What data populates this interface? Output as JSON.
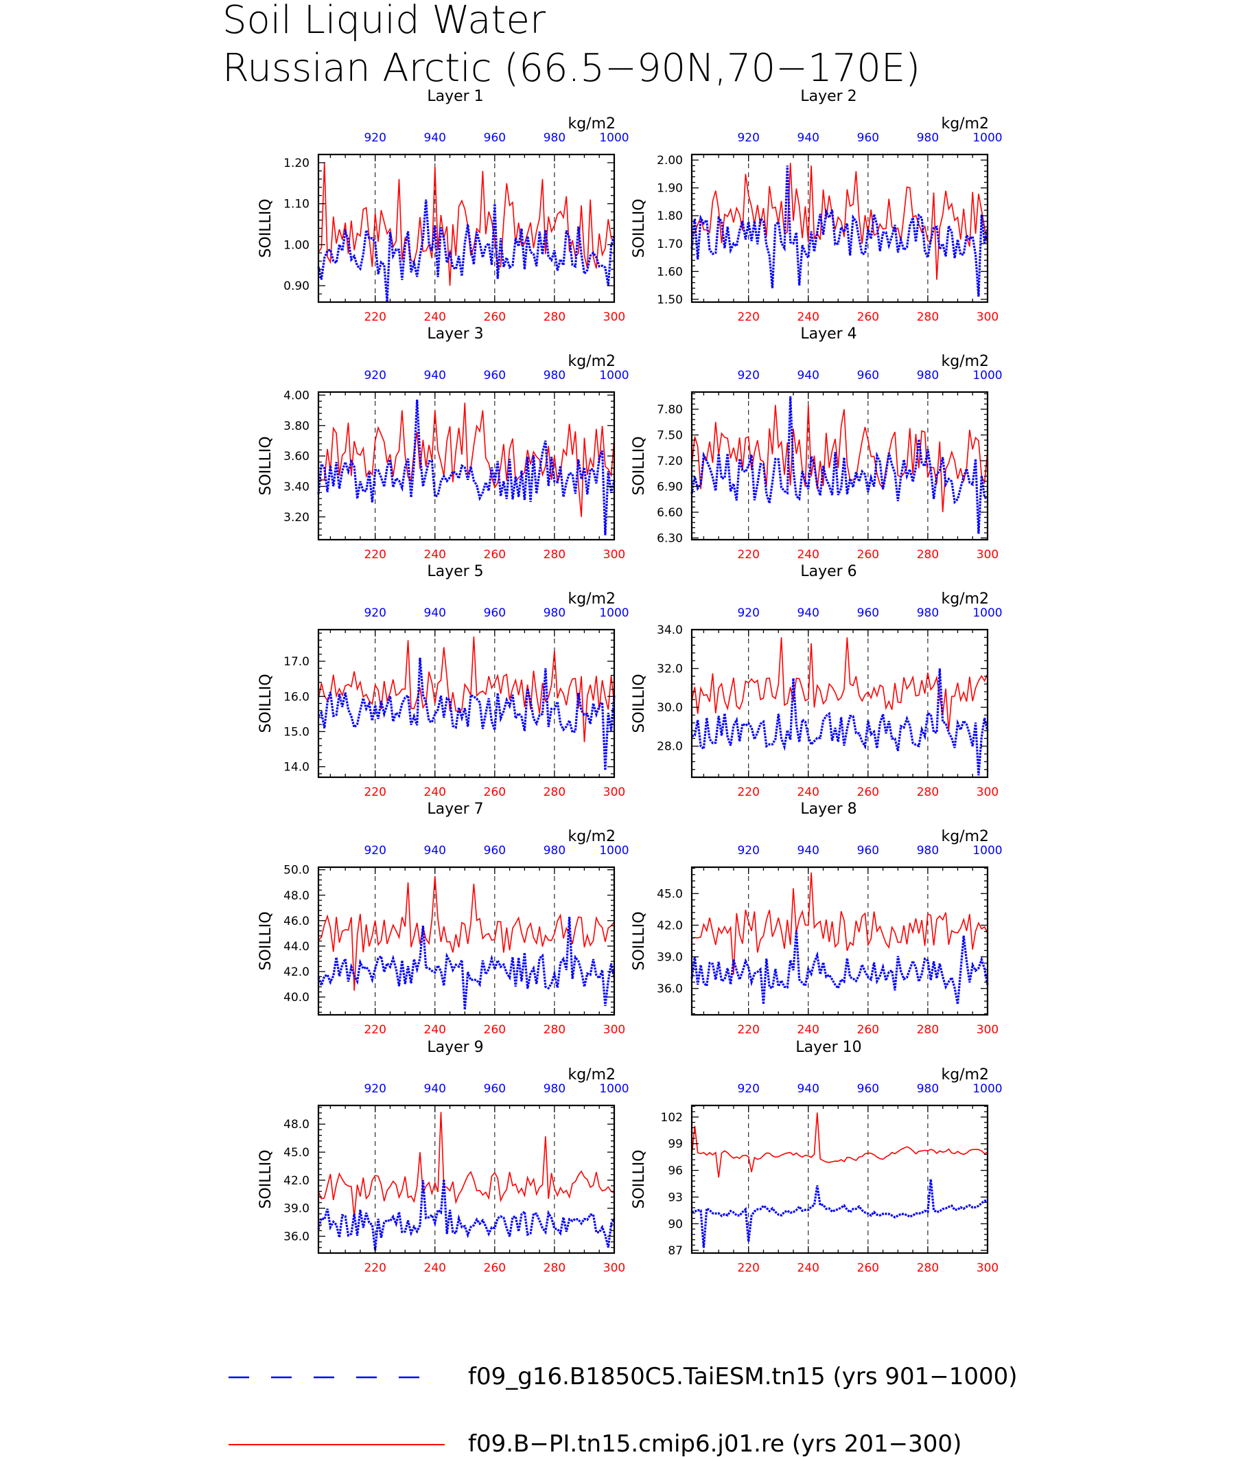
{
  "title": {
    "line1": "Soil Liquid Water",
    "line2": "Russian Arctic (66.5−90N,70−170E)"
  },
  "common": {
    "ylabel": "SOILLIQ",
    "units": "kg/m2",
    "bottom_axis": {
      "color": "#ff0000",
      "range": [
        201,
        300
      ],
      "ticks": [
        220,
        240,
        260,
        280,
        300
      ]
    },
    "top_axis": {
      "color": "#0000ff",
      "range": [
        901,
        1000
      ],
      "ticks": [
        920,
        940,
        960,
        980,
        1000
      ]
    },
    "dashed_gridlines_at_bottom_values": [
      220,
      240,
      260,
      280
    ]
  },
  "legend": {
    "blue_label": "f09_g16.B1850C5.TaiESM.tn15 (yrs 901−1000)",
    "red_label": "f09.B−PI.tn15.cmip6.j01.re (yrs 201−300)",
    "blue_color": "#0000ff",
    "red_color": "#ff0000"
  },
  "chart_data": [
    {
      "type": "line",
      "title": "Layer 1",
      "ylabel": "SOILLIQ",
      "ylim": [
        0.86,
        1.22
      ],
      "yticks": [
        "0.90",
        "1.00",
        "1.10",
        "1.20"
      ],
      "ytick_values": [
        0.9,
        1.0,
        1.1,
        1.2
      ],
      "series": [
        {
          "name": "f09.B−PI.tn15.cmip6.j01.re (yrs 201−300)",
          "mean": 1.03,
          "amp": 0.08,
          "peaks": [
            [
              203,
              1.2
            ],
            [
              228,
              1.16
            ],
            [
              240,
              1.19
            ],
            [
              245,
              0.9
            ],
            [
              256,
              1.18
            ],
            [
              264,
              1.15
            ],
            [
              276,
              1.16
            ]
          ],
          "seed": 11
        },
        {
          "name": "f09_g16.B1850C5.TaiESM.tn15 (yrs 901−1000)",
          "mean": 0.98,
          "amp": 0.06,
          "peaks": [
            [
              224,
              0.86
            ],
            [
              237,
              1.11
            ],
            [
              260,
              1.1
            ],
            [
              298,
              0.9
            ]
          ],
          "seed": 12
        }
      ]
    },
    {
      "type": "line",
      "title": "Layer 2",
      "ylabel": "SOILLIQ",
      "ylim": [
        1.49,
        2.02
      ],
      "yticks": [
        "1.50",
        "1.60",
        "1.70",
        "1.80",
        "1.90",
        "2.00"
      ],
      "ytick_values": [
        1.5,
        1.6,
        1.7,
        1.8,
        1.9,
        2.0
      ],
      "series": [
        {
          "name": "f09.B−PI.tn15.cmip6.j01.re (yrs 201−300)",
          "mean": 1.8,
          "amp": 0.1,
          "peaks": [
            [
              219,
              1.95
            ],
            [
              234,
              1.99
            ],
            [
              241,
              1.98
            ],
            [
              256,
              1.96
            ],
            [
              283,
              1.57
            ]
          ],
          "seed": 21
        },
        {
          "name": "f09_g16.B1850C5.TaiESM.tn15 (yrs 901−1000)",
          "mean": 1.73,
          "amp": 0.08,
          "peaks": [
            [
              233,
              1.98
            ],
            [
              228,
              1.54
            ],
            [
              237,
              1.55
            ],
            [
              297,
              1.51
            ]
          ],
          "seed": 22
        }
      ]
    },
    {
      "type": "line",
      "title": "Layer 3",
      "ylabel": "SOILLIQ",
      "ylim": [
        3.05,
        4.02
      ],
      "yticks": [
        "3.20",
        "3.40",
        "3.60",
        "3.80",
        "4.00"
      ],
      "ytick_values": [
        3.2,
        3.4,
        3.6,
        3.8,
        4.0
      ],
      "series": [
        {
          "name": "f09.B−PI.tn15.cmip6.j01.re (yrs 201−300)",
          "mean": 3.6,
          "amp": 0.2,
          "peaks": [
            [
              229,
              3.9
            ],
            [
              240,
              3.9
            ],
            [
              250,
              3.95
            ],
            [
              256,
              3.9
            ],
            [
              289,
              3.2
            ]
          ],
          "seed": 31
        },
        {
          "name": "f09_g16.B1850C5.TaiESM.tn15 (yrs 901−1000)",
          "mean": 3.45,
          "amp": 0.16,
          "peaks": [
            [
              234,
              3.97
            ],
            [
              297,
              3.08
            ],
            [
              277,
              3.7
            ]
          ],
          "seed": 32
        }
      ]
    },
    {
      "type": "line",
      "title": "Layer 4",
      "ylabel": "SOILLIQ",
      "ylim": [
        6.28,
        8.0
      ],
      "yticks": [
        "6.30",
        "6.60",
        "6.90",
        "7.20",
        "7.50",
        "7.80"
      ],
      "ytick_values": [
        6.3,
        6.6,
        6.9,
        7.2,
        7.5,
        7.8
      ],
      "series": [
        {
          "name": "f09.B−PI.tn15.cmip6.j01.re (yrs 201−300)",
          "mean": 7.25,
          "amp": 0.35,
          "peaks": [
            [
              229,
              7.85
            ],
            [
              240,
              7.85
            ],
            [
              252,
              7.8
            ],
            [
              285,
              6.6
            ]
          ],
          "seed": 41
        },
        {
          "name": "f09_g16.B1850C5.TaiESM.tn15 (yrs 901−1000)",
          "mean": 7.0,
          "amp": 0.28,
          "peaks": [
            [
              234,
              7.95
            ],
            [
              297,
              6.35
            ],
            [
              277,
              7.45
            ]
          ],
          "seed": 42
        }
      ]
    },
    {
      "type": "line",
      "title": "Layer 5",
      "ylabel": "SOILLIQ",
      "ylim": [
        13.7,
        17.9
      ],
      "yticks": [
        "14.0",
        "15.0",
        "16.0",
        "17.0"
      ],
      "ytick_values": [
        14.0,
        15.0,
        16.0,
        17.0
      ],
      "series": [
        {
          "name": "f09.B−PI.tn15.cmip6.j01.re (yrs 201−300)",
          "mean": 16.1,
          "amp": 0.55,
          "peaks": [
            [
              231,
              17.6
            ],
            [
              243,
              17.4
            ],
            [
              253,
              17.7
            ],
            [
              280,
              17.3
            ],
            [
              290,
              14.7
            ]
          ],
          "seed": 51
        },
        {
          "name": "f09_g16.B1850C5.TaiESM.tn15 (yrs 901−1000)",
          "mean": 15.6,
          "amp": 0.55,
          "peaks": [
            [
              235,
              17.1
            ],
            [
              297,
              13.9
            ],
            [
              277,
              16.8
            ]
          ],
          "seed": 52
        }
      ]
    },
    {
      "type": "line",
      "title": "Layer 6",
      "ylabel": "SOILLIQ",
      "ylim": [
        26.4,
        34.0
      ],
      "yticks": [
        "28.0",
        "30.0",
        "32.0",
        "34.0"
      ],
      "ytick_values": [
        28.0,
        30.0,
        32.0,
        34.0
      ],
      "series": [
        {
          "name": "f09.B−PI.tn15.cmip6.j01.re (yrs 201−300)",
          "mean": 30.7,
          "amp": 1.0,
          "peaks": [
            [
              231,
              33.6
            ],
            [
              241,
              33.3
            ],
            [
              253,
              33.6
            ],
            [
              287,
              28.8
            ]
          ],
          "seed": 61
        },
        {
          "name": "f09_g16.B1850C5.TaiESM.tn15 (yrs 901−1000)",
          "mean": 28.8,
          "amp": 0.9,
          "peaks": [
            [
              235,
              31.5
            ],
            [
              284,
              32.0
            ],
            [
              297,
              26.5
            ]
          ],
          "seed": 62
        }
      ]
    },
    {
      "type": "line",
      "title": "Layer 7",
      "ylabel": "SOILLIQ",
      "ylim": [
        38.6,
        50.2
      ],
      "yticks": [
        "40.0",
        "42.0",
        "44.0",
        "46.0",
        "48.0",
        "50.0"
      ],
      "ytick_values": [
        40.0,
        42.0,
        44.0,
        46.0,
        48.0,
        50.0
      ],
      "series": [
        {
          "name": "f09.B−PI.tn15.cmip6.j01.re (yrs 201−300)",
          "mean": 45.0,
          "amp": 1.4,
          "peaks": [
            [
              231,
              49.0
            ],
            [
              240,
              49.5
            ],
            [
              253,
              48.9
            ],
            [
              213,
              40.5
            ]
          ],
          "seed": 71
        },
        {
          "name": "f09_g16.B1850C5.TaiESM.tn15 (yrs 901−1000)",
          "mean": 42.0,
          "amp": 1.3,
          "peaks": [
            [
              236,
              45.6
            ],
            [
              285,
              46.3
            ],
            [
              250,
              39.0
            ],
            [
              297,
              39.3
            ]
          ],
          "seed": 72
        }
      ]
    },
    {
      "type": "line",
      "title": "Layer 8",
      "ylabel": "SOILLIQ",
      "ylim": [
        33.5,
        47.5
      ],
      "yticks": [
        "36.0",
        "39.0",
        "42.0",
        "45.0"
      ],
      "ytick_values": [
        36.0,
        39.0,
        42.0,
        45.0
      ],
      "series": [
        {
          "name": "f09.B−PI.tn15.cmip6.j01.re (yrs 201−300)",
          "mean": 41.5,
          "amp": 1.8,
          "peaks": [
            [
              241,
              47.0
            ],
            [
              235,
              45.5
            ],
            [
              215,
              37.3
            ]
          ],
          "seed": 81
        },
        {
          "name": "f09_g16.B1850C5.TaiESM.tn15 (yrs 901−1000)",
          "mean": 37.5,
          "amp": 1.5,
          "peaks": [
            [
              236,
              41.5
            ],
            [
              292,
              41.0
            ],
            [
              225,
              34.5
            ],
            [
              290,
              34.5
            ]
          ],
          "seed": 82
        }
      ]
    },
    {
      "type": "line",
      "title": "Layer 9",
      "ylabel": "SOILLIQ",
      "ylim": [
        34.2,
        50.0
      ],
      "yticks": [
        "36.0",
        "39.0",
        "42.0",
        "45.0",
        "48.0"
      ],
      "ytick_values": [
        36.0,
        39.0,
        42.0,
        45.0,
        48.0
      ],
      "series": [
        {
          "name": "f09.B−PI.tn15.cmip6.j01.re (yrs 201−300)",
          "mean": 41.5,
          "amp": 1.6,
          "peaks": [
            [
              242,
              49.3
            ],
            [
              277,
              46.7
            ],
            [
              235,
              45.0
            ],
            [
              213,
              38.0
            ]
          ],
          "seed": 91
        },
        {
          "name": "f09_g16.B1850C5.TaiESM.tn15 (yrs 901−1000)",
          "mean": 37.3,
          "amp": 1.4,
          "peaks": [
            [
              236,
              42.0
            ],
            [
              243,
              42.1
            ],
            [
              220,
              34.5
            ],
            [
              298,
              34.8
            ]
          ],
          "seed": 92
        }
      ]
    },
    {
      "type": "line",
      "title": "Layer 10",
      "ylabel": "SOILLIQ",
      "ylim": [
        86.7,
        103.3
      ],
      "yticks": [
        "87",
        "90",
        "93",
        "96",
        "99",
        "102"
      ],
      "ytick_values": [
        87,
        90,
        93,
        96,
        99,
        102
      ],
      "series": [
        {
          "name": "f09.B−PI.tn15.cmip6.j01.re (yrs 201−300)",
          "mean": 97.8,
          "amp": 0.9,
          "smooth": true,
          "peaks": [
            [
              202,
              101.0
            ],
            [
              210,
              95.2
            ],
            [
              243,
              102.5
            ],
            [
              221,
              95.8
            ]
          ],
          "seed": 101
        },
        {
          "name": "f09_g16.B1850C5.TaiESM.tn15 (yrs 901−1000)",
          "mean": 91.5,
          "amp": 1.1,
          "smooth": true,
          "peaks": [
            [
              205,
              87.3
            ],
            [
              920,
              88.0
            ],
            [
              281,
              95.0
            ],
            [
              243,
              94.3
            ]
          ],
          "seed": 102
        }
      ]
    }
  ]
}
